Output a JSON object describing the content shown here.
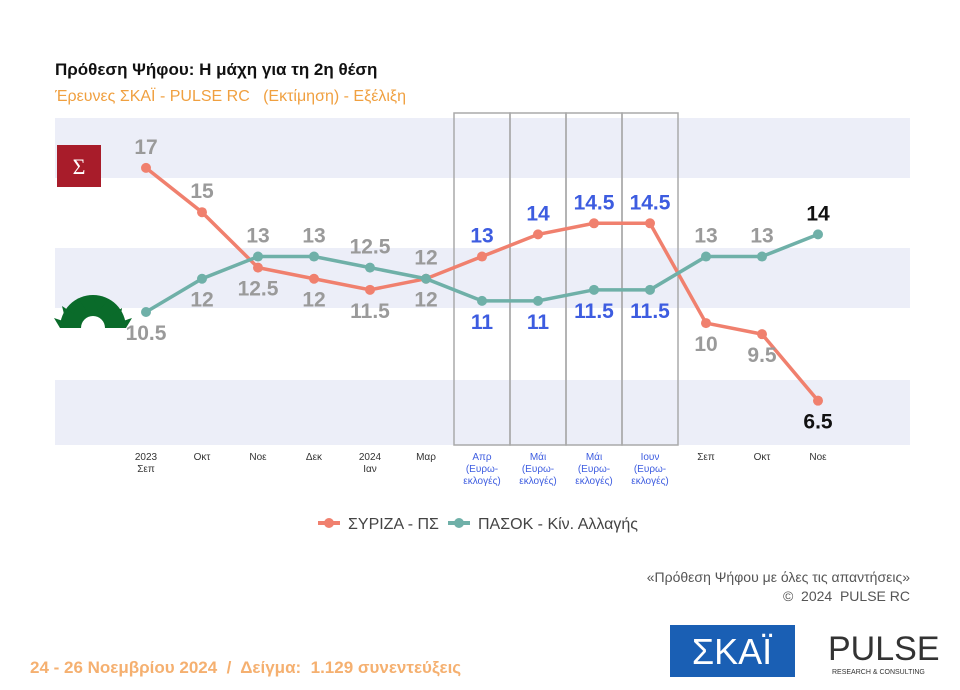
{
  "chart_data": {
    "type": "line",
    "title": "Πρόθεση Ψήφου: Η μάχη για τη 2η θέση",
    "subtitle": "Έρευνες ΣΚΑΪ - PULSE RC   (Εκτίμηση) - Εξέλιξη",
    "categories": [
      "2023\nΣεπ",
      "Οκτ",
      "Νοε",
      "Δεκ",
      "2024\nΙαν",
      "Μαρ",
      "Απρ\n(Ευρω-\nεκλογές)",
      "Μάι\n(Ευρω-\nεκλογές)",
      "Μάι\n(Ευρω-\nεκλογές)",
      "Ιουν\n(Ευρω-\nεκλογές)",
      "Σεπ",
      "Οκτ",
      "Νοε"
    ],
    "series": [
      {
        "name": "ΣΥΡΙΖΑ - ΠΣ",
        "color": "#f0806e",
        "values": [
          17,
          15,
          12.5,
          12,
          11.5,
          12,
          13,
          14,
          14.5,
          14.5,
          10,
          9.5,
          6.5
        ]
      },
      {
        "name": "ΠΑΣΟΚ - Κίν. Αλλαγής",
        "color": "#6fb0a8",
        "values": [
          10.5,
          12,
          13,
          13,
          12.5,
          12,
          11,
          11,
          11.5,
          11.5,
          13,
          13,
          14
        ]
      }
    ],
    "ylim": [
      4.5,
      19.25
    ],
    "note": "«Πρόθεση Ψήφου με όλες τις απαντήσεις»",
    "copyright": "©  2024  PULSE RC",
    "footer": "24 - 26 Νοεμβρίου 2024  /  Δείγμα:  1.129 συνεντεύξεις",
    "logos": {
      "skai": "ΣΚΑΪ",
      "pulse": "PULSE",
      "pulse_sub": "RESEARCH & CONSULTING"
    }
  }
}
